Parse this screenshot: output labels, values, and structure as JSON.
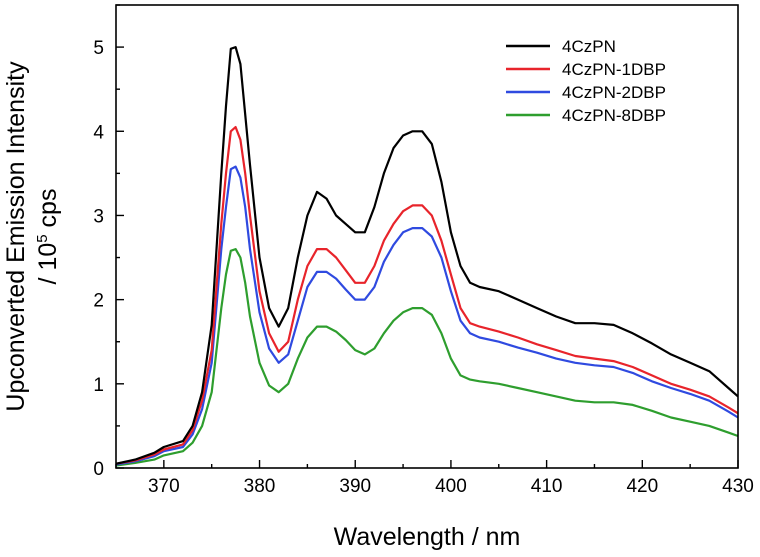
{
  "chart_data": {
    "type": "line",
    "title": "",
    "xlabel": "Wavelength / nm",
    "ylabel_line1": "Upconverted Emission Intensity",
    "ylabel_line2_prefix": "/ 10",
    "ylabel_line2_sup": "5",
    "ylabel_line2_suffix": " cps",
    "xlim": [
      365,
      430
    ],
    "ylim": [
      0,
      5.5
    ],
    "x_ticks": [
      370,
      380,
      390,
      400,
      410,
      420,
      430
    ],
    "y_ticks": [
      0,
      1,
      2,
      3,
      4,
      5
    ],
    "grid": false,
    "legend_position": "top-right",
    "x": [
      365,
      367,
      369,
      370,
      372,
      373,
      374,
      375,
      376,
      376.5,
      377,
      377.5,
      378,
      378.5,
      379,
      380,
      381,
      382,
      383,
      384,
      385,
      386,
      387,
      388,
      389,
      390,
      391,
      392,
      393,
      394,
      395,
      396,
      397,
      398,
      399,
      400,
      401,
      402,
      403,
      405,
      407,
      409,
      411,
      413,
      415,
      417,
      419,
      421,
      423,
      425,
      427,
      429,
      430
    ],
    "series": [
      {
        "name": "4CzPN",
        "color": "#000000",
        "values": [
          0.05,
          0.1,
          0.18,
          0.25,
          0.32,
          0.5,
          0.9,
          1.7,
          3.5,
          4.3,
          4.98,
          5.0,
          4.8,
          4.2,
          3.6,
          2.5,
          1.9,
          1.68,
          1.9,
          2.5,
          3.0,
          3.28,
          3.2,
          3.0,
          2.9,
          2.8,
          2.8,
          3.1,
          3.5,
          3.8,
          3.95,
          4.0,
          4.0,
          3.85,
          3.4,
          2.8,
          2.4,
          2.2,
          2.15,
          2.1,
          2.0,
          1.9,
          1.8,
          1.72,
          1.72,
          1.7,
          1.6,
          1.48,
          1.35,
          1.25,
          1.15,
          0.95,
          0.85
        ]
      },
      {
        "name": "4CzPN-1DBP",
        "color": "#e8242b",
        "values": [
          0.05,
          0.09,
          0.16,
          0.22,
          0.28,
          0.45,
          0.8,
          1.4,
          2.9,
          3.5,
          4.0,
          4.05,
          3.9,
          3.5,
          3.0,
          2.1,
          1.6,
          1.38,
          1.5,
          2.0,
          2.4,
          2.6,
          2.6,
          2.5,
          2.35,
          2.2,
          2.2,
          2.4,
          2.7,
          2.9,
          3.05,
          3.12,
          3.12,
          3.0,
          2.7,
          2.3,
          1.9,
          1.72,
          1.68,
          1.62,
          1.55,
          1.47,
          1.4,
          1.33,
          1.3,
          1.27,
          1.2,
          1.1,
          1.0,
          0.93,
          0.85,
          0.72,
          0.65
        ]
      },
      {
        "name": "4CzPN-2DBP",
        "color": "#2f4ae0",
        "values": [
          0.04,
          0.08,
          0.14,
          0.2,
          0.25,
          0.4,
          0.7,
          1.25,
          2.6,
          3.1,
          3.55,
          3.58,
          3.45,
          3.1,
          2.6,
          1.85,
          1.42,
          1.25,
          1.35,
          1.75,
          2.15,
          2.33,
          2.33,
          2.25,
          2.12,
          2.0,
          2.0,
          2.15,
          2.45,
          2.65,
          2.8,
          2.85,
          2.85,
          2.75,
          2.5,
          2.1,
          1.75,
          1.6,
          1.55,
          1.5,
          1.43,
          1.37,
          1.3,
          1.25,
          1.22,
          1.2,
          1.13,
          1.03,
          0.95,
          0.88,
          0.8,
          0.67,
          0.6
        ]
      },
      {
        "name": "4CzPN-8DBP",
        "color": "#2e9e2e",
        "values": [
          0.03,
          0.06,
          0.1,
          0.15,
          0.2,
          0.3,
          0.5,
          0.9,
          1.9,
          2.3,
          2.58,
          2.6,
          2.5,
          2.2,
          1.8,
          1.25,
          0.98,
          0.9,
          1.0,
          1.3,
          1.55,
          1.68,
          1.68,
          1.62,
          1.52,
          1.4,
          1.35,
          1.42,
          1.6,
          1.75,
          1.85,
          1.9,
          1.9,
          1.82,
          1.6,
          1.3,
          1.1,
          1.05,
          1.03,
          1.0,
          0.95,
          0.9,
          0.85,
          0.8,
          0.78,
          0.78,
          0.75,
          0.68,
          0.6,
          0.55,
          0.5,
          0.42,
          0.38
        ]
      }
    ]
  }
}
